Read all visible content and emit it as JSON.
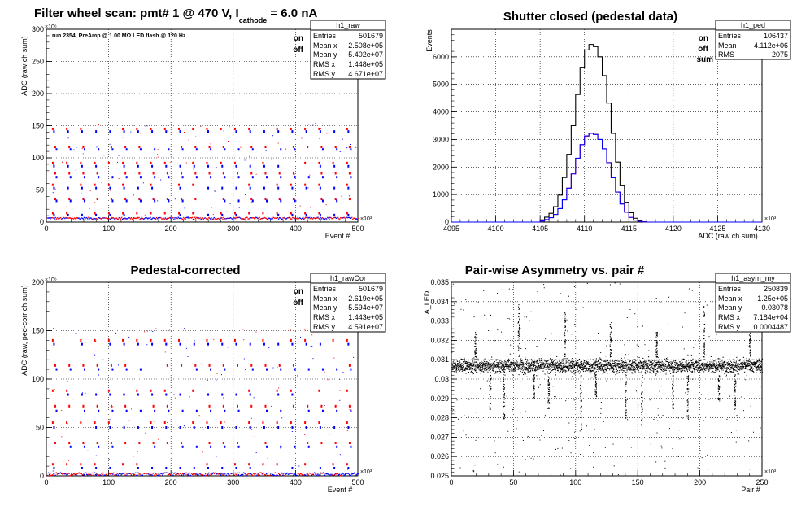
{
  "colors": {
    "on": "#ff0000",
    "off": "#0000ff",
    "sum": "#000000"
  },
  "chart_data": [
    {
      "id": "raw",
      "type": "scatter",
      "title": "Filter wheel scan: pmt#   1 @   470 V, I",
      "title_sub": "cathode",
      "title_tail": " = 6.0 nA",
      "annotation": "run 2354, PreAmp @ 1.00 MΩ  LED flash @  120 Hz",
      "xlabel": "Event #",
      "ylabel": "ADC (raw ch sum)",
      "xlim": [
        0,
        500
      ],
      "ylim": [
        0,
        300
      ],
      "xticks": [
        0,
        100,
        200,
        300,
        400,
        500
      ],
      "yticks": [
        0,
        50,
        100,
        150,
        200,
        250,
        300
      ],
      "x_exponent": "×10³",
      "y_exponent": "×10⁶",
      "grid": true,
      "legend": [
        {
          "label": "on",
          "color": "#ff0000"
        },
        {
          "label": "off",
          "color": "#0000ff"
        }
      ],
      "stats": {
        "name": "h1_raw",
        "rows": [
          [
            "Entries",
            "501679"
          ],
          [
            "Mean x",
            "2.508e+05"
          ],
          [
            "Mean y",
            "5.402e+07"
          ],
          [
            "RMS x",
            "1.448e+05"
          ],
          [
            "RMS y",
            "4.671e+07"
          ]
        ]
      },
      "levels_on": [
        145,
        117,
        92,
        76,
        58,
        36,
        14
      ],
      "levels_off": [
        141,
        113,
        87,
        70,
        53,
        33,
        11
      ],
      "baseline": 4
    },
    {
      "id": "ped",
      "type": "histogram",
      "title": "Shutter closed (pedestal data)",
      "xlabel": "ADC (raw ch sum)",
      "ylabel": "Events",
      "xlim": [
        4095,
        4130
      ],
      "ylim": [
        0,
        7000
      ],
      "xticks": [
        4095,
        4100,
        4105,
        4110,
        4115,
        4120,
        4125,
        4130
      ],
      "yticks": [
        0,
        1000,
        2000,
        3000,
        4000,
        5000,
        6000
      ],
      "x_exponent": "×10³",
      "grid": true,
      "legend": [
        {
          "label": "on",
          "color": "#ff0000"
        },
        {
          "label": "off",
          "color": "#0000ff"
        },
        {
          "label": "sum",
          "color": "#000000"
        }
      ],
      "stats": {
        "name": "h1_ped",
        "rows": [
          [
            "Entries",
            "106437"
          ],
          [
            "Mean",
            "4.112e+06"
          ],
          [
            "RMS",
            "2075"
          ]
        ]
      },
      "bin_start": 4105,
      "bin_width": 0.5,
      "series": [
        {
          "name": "sum",
          "color": "#000000",
          "values": [
            80,
            180,
            320,
            560,
            980,
            1620,
            2460,
            3500,
            4630,
            5620,
            6250,
            6450,
            6370,
            6000,
            5320,
            4320,
            3220,
            2180,
            1320,
            720,
            340,
            140,
            50,
            10
          ]
        },
        {
          "name": "on",
          "color": "#ff0000",
          "values": [
            40,
            90,
            160,
            280,
            490,
            810,
            1230,
            1750,
            2310,
            2810,
            3120,
            3230,
            3190,
            3000,
            2660,
            2160,
            1610,
            1090,
            660,
            360,
            170,
            70,
            25,
            5
          ]
        },
        {
          "name": "off",
          "color": "#0000ff",
          "values": [
            40,
            90,
            160,
            280,
            490,
            810,
            1230,
            1750,
            2320,
            2810,
            3130,
            3220,
            3180,
            3000,
            2660,
            2160,
            1610,
            1090,
            660,
            360,
            170,
            70,
            25,
            5
          ]
        }
      ]
    },
    {
      "id": "cor",
      "type": "scatter",
      "title": "Pedestal-corrected",
      "xlabel": "Event #",
      "ylabel": "ADC (raw, ped-corr ch sum)",
      "xlim": [
        0,
        500
      ],
      "ylim": [
        0,
        200
      ],
      "xticks": [
        0,
        100,
        200,
        300,
        400,
        500
      ],
      "yticks": [
        0,
        50,
        100,
        150,
        200
      ],
      "x_exponent": "×10³",
      "y_exponent": "×10⁶",
      "grid": true,
      "legend": [
        {
          "label": "on",
          "color": "#ff0000"
        },
        {
          "label": "off",
          "color": "#0000ff"
        }
      ],
      "stats": {
        "name": "h1_rawCor",
        "rows": [
          [
            "Entries",
            "501679"
          ],
          [
            "Mean x",
            "2.619e+05"
          ],
          [
            "Mean y",
            "5.594e+07"
          ],
          [
            "RMS x",
            "1.443e+05"
          ],
          [
            "RMS y",
            "4.591e+07"
          ]
        ]
      },
      "levels_on": [
        140,
        114,
        88,
        72,
        55,
        34,
        12
      ],
      "levels_off": [
        136,
        110,
        84,
        67,
        50,
        30,
        8
      ],
      "baseline": 0
    },
    {
      "id": "asym",
      "type": "scatter",
      "title": "Pair-wise Asymmetry vs. pair #",
      "xlabel": "Pair #",
      "ylabel": "A_LED",
      "xlim": [
        0,
        250
      ],
      "ylim": [
        0.025,
        0.035
      ],
      "xticks": [
        0,
        50,
        100,
        150,
        200,
        250
      ],
      "yticks": [
        0.025,
        0.026,
        0.027,
        0.028,
        0.029,
        0.03,
        0.031,
        0.032,
        0.033,
        0.034,
        0.035
      ],
      "x_exponent": "×10³",
      "grid": true,
      "stats": {
        "name": "h1_asym_my",
        "rows": [
          [
            "Entries",
            "250839"
          ],
          [
            "Mean x",
            "1.25e+05"
          ],
          [
            "Mean y",
            "0.03078"
          ],
          [
            "RMS x",
            "7.184e+04"
          ],
          [
            "RMS y",
            "0.0004487"
          ]
        ]
      },
      "band_center": 0.0307,
      "band_half_width": 0.00045,
      "spike_x": [
        19,
        31,
        42,
        54,
        66,
        78,
        91,
        104,
        116,
        128,
        140,
        153,
        165,
        178,
        190,
        203,
        215,
        228,
        240
      ]
    }
  ]
}
